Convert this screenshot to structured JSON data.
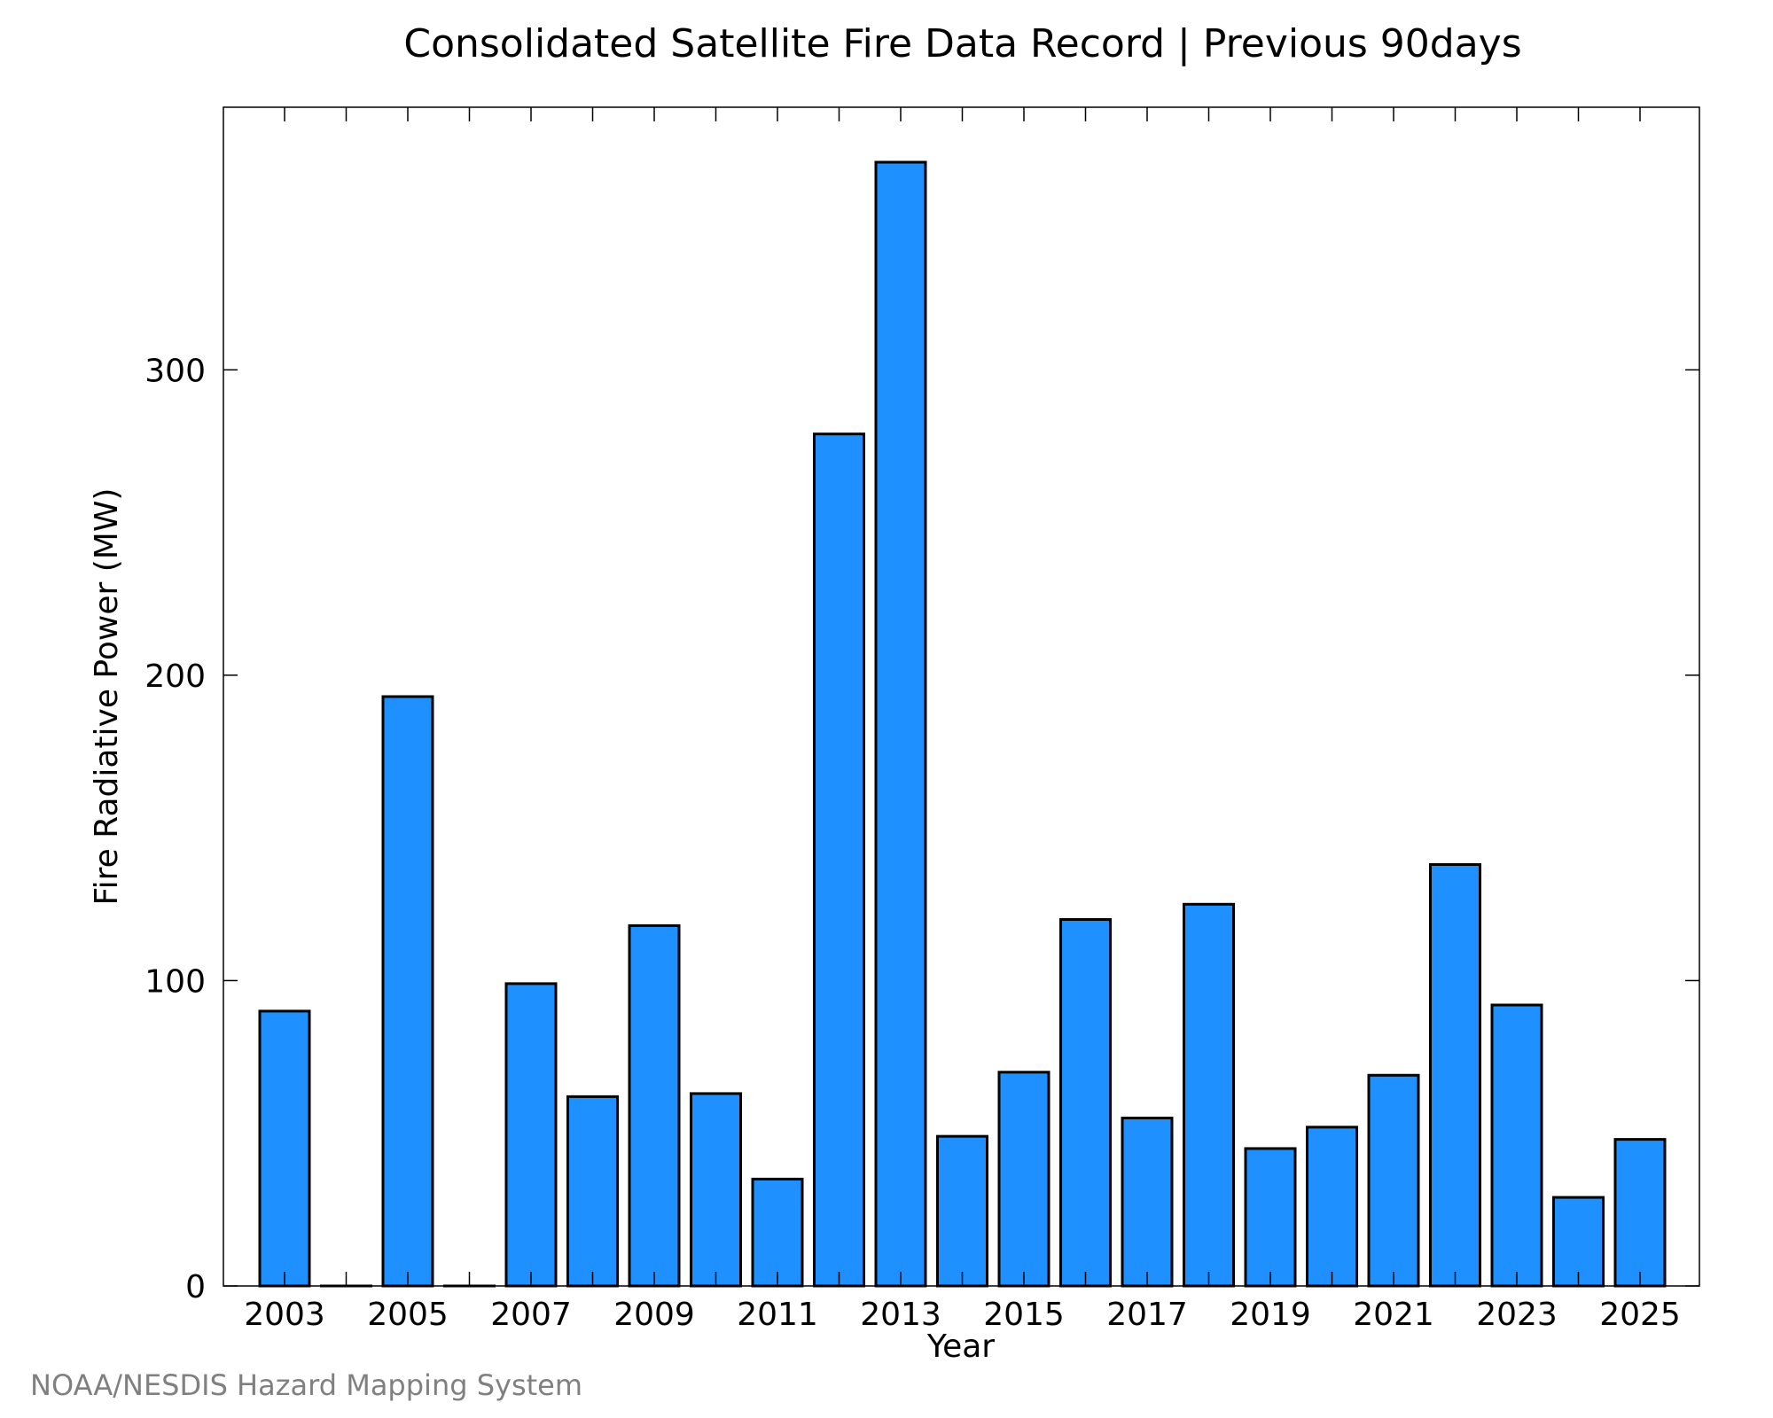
{
  "chart_data": {
    "type": "bar",
    "title": "Consolidated Satellite Fire Data Record | Previous 90days",
    "xlabel": "Year",
    "ylabel": "Fire Radiative Power (MW)",
    "categories": [
      "2003",
      "2004",
      "2005",
      "2006",
      "2007",
      "2008",
      "2009",
      "2010",
      "2011",
      "2012",
      "2013",
      "2014",
      "2015",
      "2016",
      "2017",
      "2018",
      "2019",
      "2020",
      "2021",
      "2022",
      "2023",
      "2024",
      "2025"
    ],
    "x_tick_labels": [
      "2003",
      "2005",
      "2007",
      "2009",
      "2011",
      "2013",
      "2015",
      "2017",
      "2019",
      "2021",
      "2023",
      "2025"
    ],
    "values": [
      90,
      0,
      193,
      0,
      99,
      62,
      118,
      63,
      35,
      279,
      368,
      49,
      70,
      120,
      55,
      125,
      45,
      52,
      69,
      138,
      92,
      29,
      48
    ],
    "ylim": [
      0,
      386
    ],
    "y_ticks": [
      0,
      100,
      200,
      300
    ],
    "bar_color": "#1E90FF",
    "bar_edge_color": "#000000",
    "grid": false,
    "credit": "NOAA/NESDIS Hazard Mapping System"
  }
}
